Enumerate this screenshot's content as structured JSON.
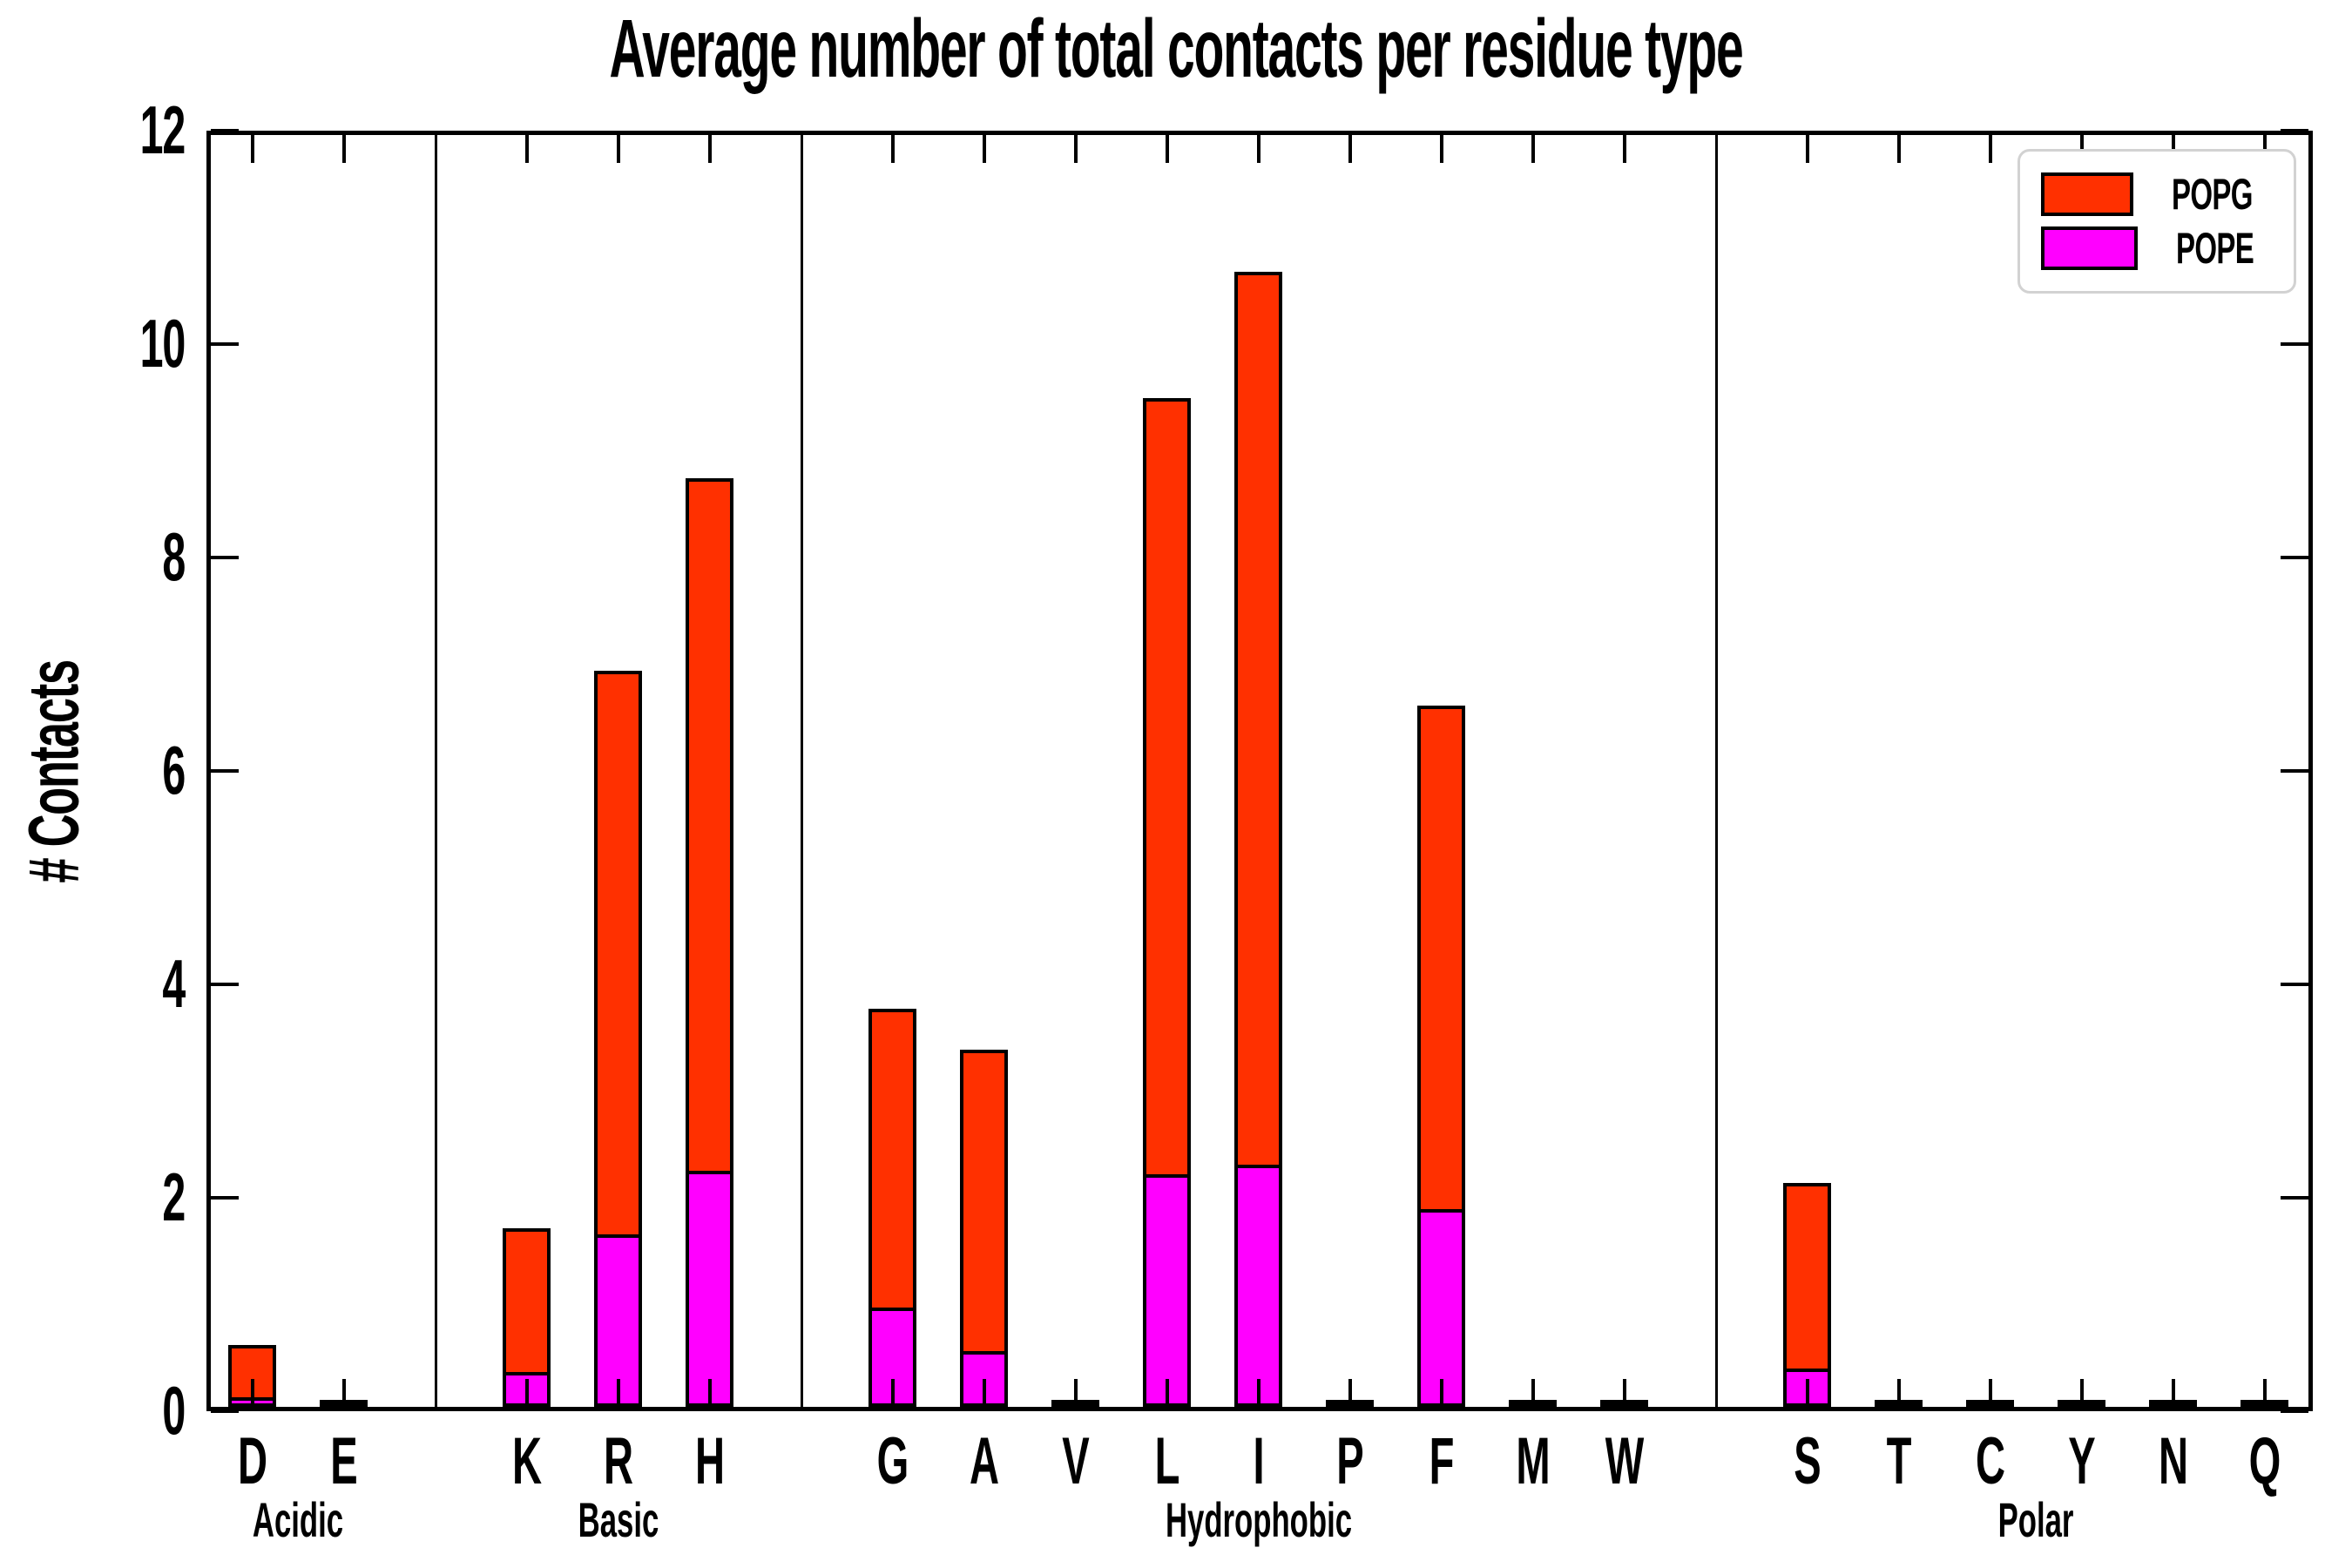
{
  "title": "Average number of total contacts per residue type",
  "ylabel": "# Contacts",
  "legend": {
    "entries": [
      {
        "label": "POPG",
        "color": "#ff3000"
      },
      {
        "label": "POPE",
        "color": "#ff00ff"
      }
    ]
  },
  "colors": {
    "popg": "#ff3000",
    "pope": "#ff00ff",
    "frame": "#000000",
    "legend_border": "#d2d2d2"
  },
  "chart_data": {
    "type": "bar",
    "stacked": true,
    "title": "Average number of total contacts per residue type",
    "xlabel": "",
    "ylabel": "# Contacts",
    "ylim": [
      0,
      12
    ],
    "yticks": [
      0,
      2,
      4,
      6,
      8,
      10,
      12
    ],
    "grid": false,
    "legend_position": "upper right",
    "categories": [
      "D",
      "E",
      "K",
      "R",
      "H",
      "G",
      "A",
      "V",
      "L",
      "I",
      "P",
      "F",
      "M",
      "W",
      "S",
      "T",
      "C",
      "Y",
      "N",
      "Q"
    ],
    "groups": [
      {
        "label": "Acidic",
        "residues": [
          "D",
          "E"
        ]
      },
      {
        "label": "Basic",
        "residues": [
          "K",
          "R",
          "H"
        ]
      },
      {
        "label": "Hydrophobic",
        "residues": [
          "G",
          "A",
          "V",
          "L",
          "I",
          "P",
          "F",
          "M",
          "W"
        ]
      },
      {
        "label": "Polar",
        "residues": [
          "S",
          "T",
          "C",
          "Y",
          "N",
          "Q"
        ]
      }
    ],
    "series": [
      {
        "name": "POPE",
        "color": "#ff00ff",
        "values": [
          0.06,
          0,
          0.29,
          1.58,
          2.18,
          0.9,
          0.49,
          0,
          2.15,
          2.24,
          0,
          1.82,
          0,
          0,
          0.33,
          0,
          0,
          0,
          0,
          0
        ]
      },
      {
        "name": "POPG",
        "color": "#ff3000",
        "values": [
          0.52,
          0.02,
          1.38,
          5.32,
          6.52,
          2.83,
          2.86,
          0.02,
          7.3,
          8.4,
          0.02,
          4.75,
          0.02,
          0.02,
          1.77,
          0.02,
          0.02,
          0.02,
          0.02,
          0.02
        ]
      }
    ],
    "totals": [
      0.58,
      0.02,
      1.67,
      6.9,
      8.7,
      3.73,
      3.35,
      0.02,
      9.45,
      10.64,
      0.02,
      6.57,
      0.02,
      0.02,
      2.1,
      0.02,
      0.02,
      0.02,
      0.02,
      0.02
    ]
  }
}
